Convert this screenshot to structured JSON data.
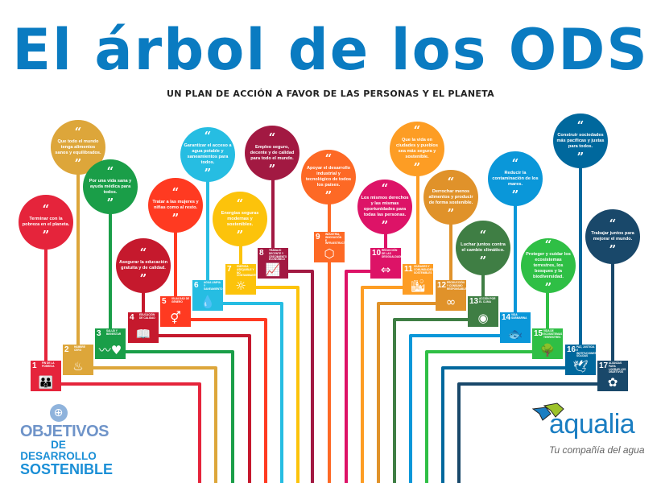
{
  "header": {
    "title": "El árbol de los ODS",
    "subtitle": "UN PLAN DE ACCIÓN A FAVOR DE LAS PERSONAS Y EL PLANETA"
  },
  "quote_open": "“",
  "quote_close": "”",
  "goals": [
    {
      "number": "1",
      "title": "Fin de la pobreza",
      "message": "Terminar con la pobreza en el planeta.",
      "icon": "people-icon",
      "glyph": "👪",
      "color": "#e5243b"
    },
    {
      "number": "2",
      "title": "Hambre cero",
      "message": "Que todo el mundo tenga alimentos sanos y equilibrados.",
      "icon": "bowl-icon",
      "glyph": "♨",
      "color": "#dda63a"
    },
    {
      "number": "3",
      "title": "Salud y bienestar",
      "message": "Por una vida sana y ayuda médica para todos.",
      "icon": "heartbeat-icon",
      "glyph": "〰♥",
      "color": "#1a9e48"
    },
    {
      "number": "4",
      "title": "Educación de calidad",
      "message": "Asegurar la educación gratuita y de calidad.",
      "icon": "book-icon",
      "glyph": "📖",
      "color": "#c5192d"
    },
    {
      "number": "5",
      "title": "Igualdad de género",
      "message": "Tratar a las mujeres y niñas como al resto.",
      "icon": "gender-equality-icon",
      "glyph": "⚥",
      "color": "#ff3a21"
    },
    {
      "number": "6",
      "title": "Agua limpia y saneamiento",
      "message": "Garantizar el acceso a agua potable y saneamientos para todos.",
      "icon": "water-drop-icon",
      "glyph": "💧",
      "color": "#26bde2"
    },
    {
      "number": "7",
      "title": "Energía asequible y no contaminante",
      "message": "Energías seguras modernas y sostenibles.",
      "icon": "sun-icon",
      "glyph": "☼",
      "color": "#fcc30b"
    },
    {
      "number": "8",
      "title": "Trabajo decente y crecimiento económico",
      "message": "Empleo seguro, decente y de calidad para todo el mundo.",
      "icon": "growth-chart-icon",
      "glyph": "📈",
      "color": "#a21942"
    },
    {
      "number": "9",
      "title": "Industria, innovación e infraestructura",
      "message": "Apoyar el desarrollo industrial y tecnológico de todos los países.",
      "icon": "cubes-icon",
      "glyph": "⬡",
      "color": "#fd6925"
    },
    {
      "number": "10",
      "title": "Reducción de las desigualdades",
      "message": "Los mismos derechos y las mismas oportunidades para todas las personas.",
      "icon": "equal-arrows-icon",
      "glyph": "⇔",
      "color": "#dd1367"
    },
    {
      "number": "11",
      "title": "Ciudades y comunidades sostenibles",
      "message": "Que la vida en ciudades y pueblos sea más segura y sostenible.",
      "icon": "city-icon",
      "glyph": "🏙",
      "color": "#fd9d24"
    },
    {
      "number": "12",
      "title": "Producción y consumo responsables",
      "message": "Derrochar menos alimentos y producir de forma sostenible.",
      "icon": "infinity-icon",
      "glyph": "∞",
      "color": "#e0922a"
    },
    {
      "number": "13",
      "title": "Acción por el clima",
      "message": "Luchar juntos contra el cambio climático.",
      "icon": "eye-globe-icon",
      "glyph": "◉",
      "color": "#3f7e44"
    },
    {
      "number": "14",
      "title": "Vida submarina",
      "message": "Reducir la contaminación de los mares.",
      "icon": "fish-icon",
      "glyph": "🐟",
      "color": "#0a97d9"
    },
    {
      "number": "15",
      "title": "Vida de ecosistemas terrestres",
      "message": "Proteger y cuidar los ecosistemas terrestres, los bosques y la biodiversidad.",
      "icon": "tree-icon",
      "glyph": "🌳",
      "color": "#2fbf45"
    },
    {
      "number": "16",
      "title": "Paz, justicia e instituciones sólidas",
      "message": "Construir sociedades más pacíficas y justas para todos.",
      "icon": "dove-icon",
      "glyph": "🕊",
      "color": "#00689d"
    },
    {
      "number": "17",
      "title": "Alianzas para lograr los objetivos",
      "message": "Trabajar juntos para mejorar el mundo.",
      "icon": "flower-rings-icon",
      "glyph": "✿",
      "color": "#19486a"
    }
  ],
  "footer": {
    "ods_logo": {
      "line1": "OBJETIVOS",
      "line2": "DE DESARROLLO",
      "line3": "SOSTENIBLE"
    },
    "brand": {
      "name": "aqualia",
      "tagline": "Tu compañía del agua",
      "color": "#1b7ec2"
    }
  }
}
